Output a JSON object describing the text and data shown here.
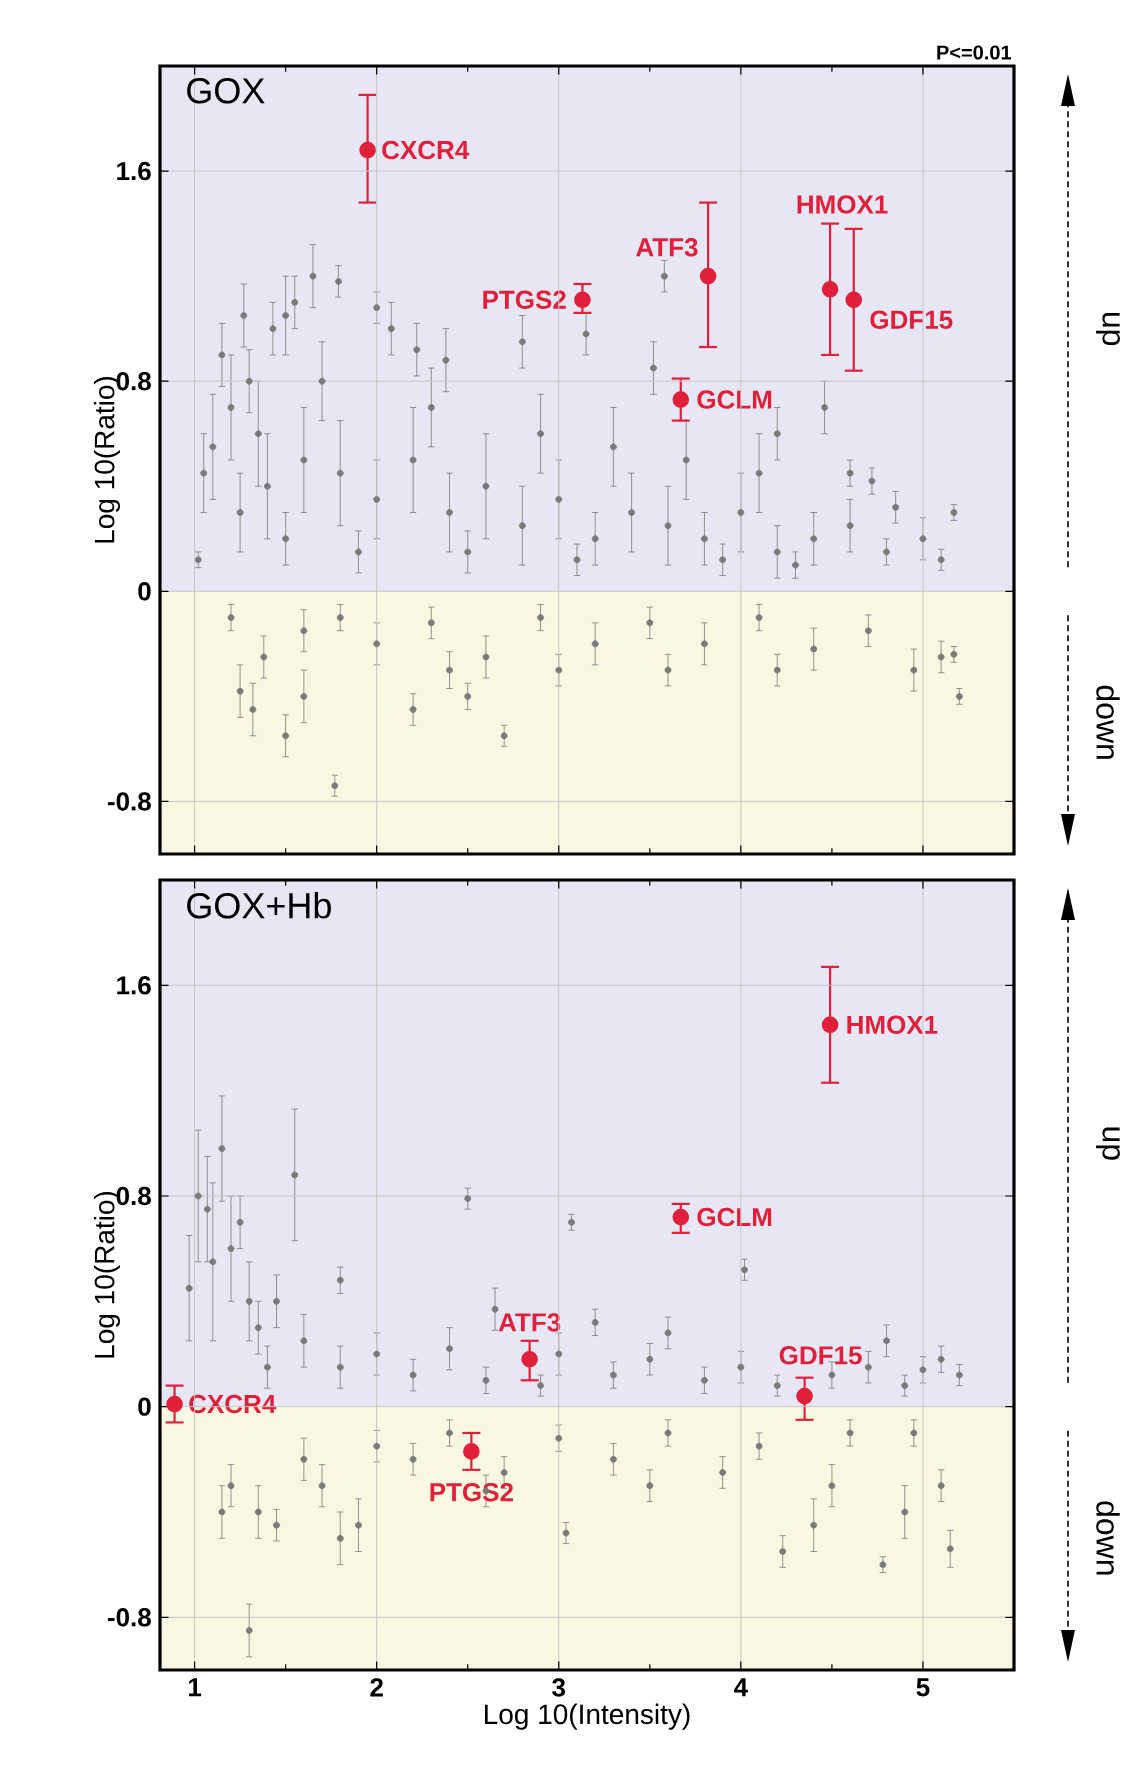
{
  "chart_data": [
    {
      "type": "scatter",
      "title": "GOX",
      "ylabel": "Log 10(Ratio)",
      "xlim": [
        0.81,
        5.5
      ],
      "ylim": [
        -1.0,
        2.0
      ],
      "xticks": [
        1,
        2,
        3,
        4,
        5
      ],
      "yticks": [
        -0.8,
        0,
        0.8,
        1.6
      ],
      "grid": true,
      "tick_labels": "y",
      "bands": [
        {
          "axis": "y",
          "from": 0,
          "to": 2.0,
          "label": "up",
          "color": "#e6e6f4"
        },
        {
          "axis": "y",
          "from": -1.0,
          "to": 0,
          "label": "down",
          "color": "#f8f8e2"
        }
      ],
      "series": [
        {
          "color": "#7a7a7a",
          "x": [
            1.79,
            1.65,
            1.55,
            1.5,
            1.43,
            1.3,
            2.0,
            2.08,
            2.22,
            2.38,
            2.8,
            3.15,
            3.58,
            3.52,
            4.46,
            4.2,
            4.6,
            4.72,
            5.17,
            5.0,
            4.85,
            1.02,
            1.05,
            1.1,
            1.2,
            1.35,
            1.4,
            1.6,
            1.8,
            2.0,
            2.2,
            2.4,
            2.6,
            2.8,
            3.0,
            3.2,
            3.4,
            3.6,
            3.8,
            4.0,
            4.2,
            4.4,
            4.6,
            4.8,
            5.1,
            1.5,
            1.9,
            2.5,
            3.1,
            3.9,
            4.3,
            1.25,
            2.9,
            3.3,
            3.7,
            4.1,
            2.3,
            1.7,
            1.15,
            1.27,
            1.2,
            1.25,
            1.32,
            1.38,
            1.5,
            1.6,
            1.77,
            2.2,
            2.7,
            2.5,
            1.6,
            1.8,
            2.0,
            2.3,
            2.6,
            2.9,
            3.2,
            3.5,
            3.8,
            4.1,
            4.4,
            4.7,
            4.95,
            5.1,
            5.2,
            5.17,
            3.0,
            3.6,
            4.2,
            2.4
          ],
          "values": [
            1.18,
            1.2,
            1.1,
            1.05,
            1.0,
            0.8,
            1.08,
            1.0,
            0.92,
            0.88,
            0.95,
            0.98,
            1.2,
            0.85,
            0.7,
            0.6,
            0.45,
            0.42,
            0.3,
            0.2,
            0.32,
            0.12,
            0.45,
            0.55,
            0.7,
            0.6,
            0.4,
            0.5,
            0.45,
            0.35,
            0.5,
            0.3,
            0.4,
            0.25,
            0.35,
            0.2,
            0.3,
            0.25,
            0.2,
            0.3,
            0.15,
            0.2,
            0.25,
            0.15,
            0.12,
            0.2,
            0.15,
            0.15,
            0.12,
            0.12,
            0.1,
            0.3,
            0.6,
            0.55,
            0.5,
            0.45,
            0.7,
            0.8,
            0.9,
            1.05,
            -0.1,
            -0.38,
            -0.45,
            -0.25,
            -0.55,
            -0.4,
            -0.74,
            -0.45,
            -0.55,
            -0.4,
            -0.15,
            -0.1,
            -0.2,
            -0.12,
            -0.25,
            -0.1,
            -0.2,
            -0.12,
            -0.2,
            -0.1,
            -0.22,
            -0.15,
            -0.3,
            -0.25,
            -0.4,
            -0.24,
            -0.3,
            -0.3,
            -0.3,
            -0.3
          ],
          "errors": [
            0.06,
            0.12,
            0.1,
            0.15,
            0.1,
            0.12,
            0.06,
            0.1,
            0.1,
            0.12,
            0.1,
            0.08,
            0.06,
            0.1,
            0.1,
            0.1,
            0.05,
            0.05,
            0.03,
            0.08,
            0.06,
            0.03,
            0.15,
            0.2,
            0.2,
            0.2,
            0.2,
            0.2,
            0.2,
            0.15,
            0.2,
            0.15,
            0.2,
            0.15,
            0.15,
            0.1,
            0.15,
            0.15,
            0.1,
            0.15,
            0.1,
            0.1,
            0.1,
            0.05,
            0.04,
            0.1,
            0.08,
            0.08,
            0.06,
            0.06,
            0.05,
            0.15,
            0.15,
            0.15,
            0.15,
            0.15,
            0.15,
            0.15,
            0.12,
            0.12,
            0.05,
            0.1,
            0.1,
            0.08,
            0.08,
            0.1,
            0.04,
            0.06,
            0.04,
            0.05,
            0.08,
            0.05,
            0.08,
            0.06,
            0.08,
            0.05,
            0.08,
            0.06,
            0.08,
            0.05,
            0.08,
            0.06,
            0.08,
            0.06,
            0.03,
            0.03,
            0.06,
            0.06,
            0.06,
            0.07
          ]
        },
        {
          "color": "#e0203a",
          "x": [
            1.95,
            3.13,
            3.82,
            3.67,
            4.49,
            4.62
          ],
          "values": [
            1.68,
            1.11,
            1.2,
            0.73,
            1.15,
            1.11
          ],
          "errors": [
            [
              1.48,
              1.89
            ],
            [
              1.06,
              1.17
            ],
            [
              0.93,
              1.48
            ],
            [
              0.65,
              0.81
            ],
            [
              0.9,
              1.4
            ],
            [
              0.84,
              1.38
            ]
          ]
        }
      ],
      "annotations": [
        {
          "text": "CXCR4",
          "x": 1.95,
          "y": 1.68
        },
        {
          "text": "PTGS2",
          "x": 3.13,
          "y": 1.11
        },
        {
          "text": "ATF3",
          "x": 3.82,
          "y": 1.2
        },
        {
          "text": "GCLM",
          "x": 3.67,
          "y": 0.73
        },
        {
          "text": "HMOX1",
          "x": 4.49,
          "y": 1.15
        },
        {
          "text": "GDF15",
          "x": 4.62,
          "y": 1.11
        },
        "P<=0.01"
      ]
    },
    {
      "type": "scatter",
      "title": "GOX+Hb",
      "xlabel": "Log 10(Intensity)",
      "ylabel": "Log 10(Ratio)",
      "xlim": [
        0.81,
        5.5
      ],
      "ylim": [
        -1.0,
        2.0
      ],
      "xticks": [
        1,
        2,
        3,
        4,
        5
      ],
      "yticks": [
        -0.8,
        0,
        0.8,
        1.6
      ],
      "grid": true,
      "bands": [
        {
          "axis": "y",
          "from": 0,
          "to": 2.0,
          "label": "up",
          "color": "#e6e6f4"
        },
        {
          "axis": "y",
          "from": -1.0,
          "to": 0,
          "label": "down",
          "color": "#f8f8e2"
        }
      ],
      "series": [
        {
          "color": "#7a7a7a",
          "x": [
            0.97,
            1.02,
            1.07,
            1.1,
            1.15,
            1.2,
            1.25,
            1.3,
            1.35,
            1.45,
            1.55,
            1.8,
            2.5,
            3.07,
            4.02,
            3.2,
            2.65,
            1.6,
            1.8,
            2.0,
            2.2,
            2.4,
            2.6,
            3.0,
            3.3,
            3.5,
            3.8,
            4.0,
            4.2,
            4.5,
            4.7,
            4.8,
            5.0,
            5.1,
            5.2,
            1.4,
            4.9,
            3.6,
            2.9,
            1.15,
            1.2,
            1.3,
            1.35,
            1.45,
            1.6,
            1.8,
            1.9,
            2.0,
            2.2,
            2.4,
            2.7,
            3.04,
            3.0,
            3.3,
            3.6,
            3.9,
            4.1,
            4.23,
            4.4,
            4.5,
            4.78,
            4.9,
            5.1,
            5.15,
            4.6,
            4.95,
            2.6,
            3.5,
            1.7
          ],
          "values": [
            0.45,
            0.8,
            0.75,
            0.55,
            0.98,
            0.6,
            0.7,
            0.4,
            0.3,
            0.4,
            0.88,
            0.48,
            0.79,
            0.7,
            0.52,
            0.32,
            0.37,
            0.25,
            0.15,
            0.2,
            0.12,
            0.22,
            0.1,
            0.2,
            0.12,
            0.18,
            0.1,
            0.15,
            0.08,
            0.12,
            0.15,
            0.25,
            0.14,
            0.18,
            0.12,
            0.15,
            0.08,
            0.28,
            0.08,
            -0.4,
            -0.3,
            -0.85,
            -0.4,
            -0.45,
            -0.2,
            -0.5,
            -0.45,
            -0.15,
            -0.2,
            -0.1,
            -0.25,
            -0.48,
            -0.12,
            -0.2,
            -0.1,
            -0.25,
            -0.15,
            -0.55,
            -0.45,
            -0.3,
            -0.6,
            -0.4,
            -0.3,
            -0.54,
            -0.1,
            -0.1,
            -0.32,
            -0.3,
            -0.3
          ],
          "errors": [
            0.2,
            0.25,
            0.2,
            0.3,
            0.2,
            0.2,
            0.1,
            0.15,
            0.1,
            0.1,
            0.25,
            0.05,
            0.04,
            0.03,
            0.04,
            0.05,
            0.08,
            0.1,
            0.08,
            0.08,
            0.06,
            0.08,
            0.05,
            0.08,
            0.05,
            0.06,
            0.05,
            0.06,
            0.04,
            0.05,
            0.06,
            0.06,
            0.05,
            0.05,
            0.04,
            0.08,
            0.04,
            0.06,
            0.04,
            0.1,
            0.08,
            0.1,
            0.1,
            0.06,
            0.08,
            0.1,
            0.1,
            0.06,
            0.06,
            0.05,
            0.06,
            0.04,
            0.05,
            0.06,
            0.05,
            0.06,
            0.05,
            0.06,
            0.1,
            0.08,
            0.03,
            0.1,
            0.06,
            0.07,
            0.05,
            0.05,
            0.06,
            0.06,
            0.08
          ]
        },
        {
          "color": "#e0203a",
          "x": [
            0.89,
            2.84,
            2.52,
            3.67,
            4.35,
            4.49
          ],
          "values": [
            0.01,
            0.18,
            -0.17,
            0.72,
            0.04,
            1.45
          ],
          "errors": [
            [
              -0.06,
              0.08
            ],
            [
              0.1,
              0.25
            ],
            [
              -0.24,
              -0.1
            ],
            [
              0.66,
              0.77
            ],
            [
              -0.05,
              0.11
            ],
            [
              1.23,
              1.67
            ]
          ]
        }
      ],
      "annotations": [
        {
          "text": "CXCR4",
          "x": 0.89,
          "y": 0.01
        },
        {
          "text": "ATF3",
          "x": 2.84,
          "y": 0.18
        },
        {
          "text": "PTGS2",
          "x": 2.52,
          "y": -0.17
        },
        {
          "text": "GCLM",
          "x": 3.67,
          "y": 0.72
        },
        {
          "text": "GDF15",
          "x": 4.35,
          "y": 0.04
        },
        {
          "text": "HMOX1",
          "x": 4.49,
          "y": 1.45
        }
      ]
    }
  ]
}
